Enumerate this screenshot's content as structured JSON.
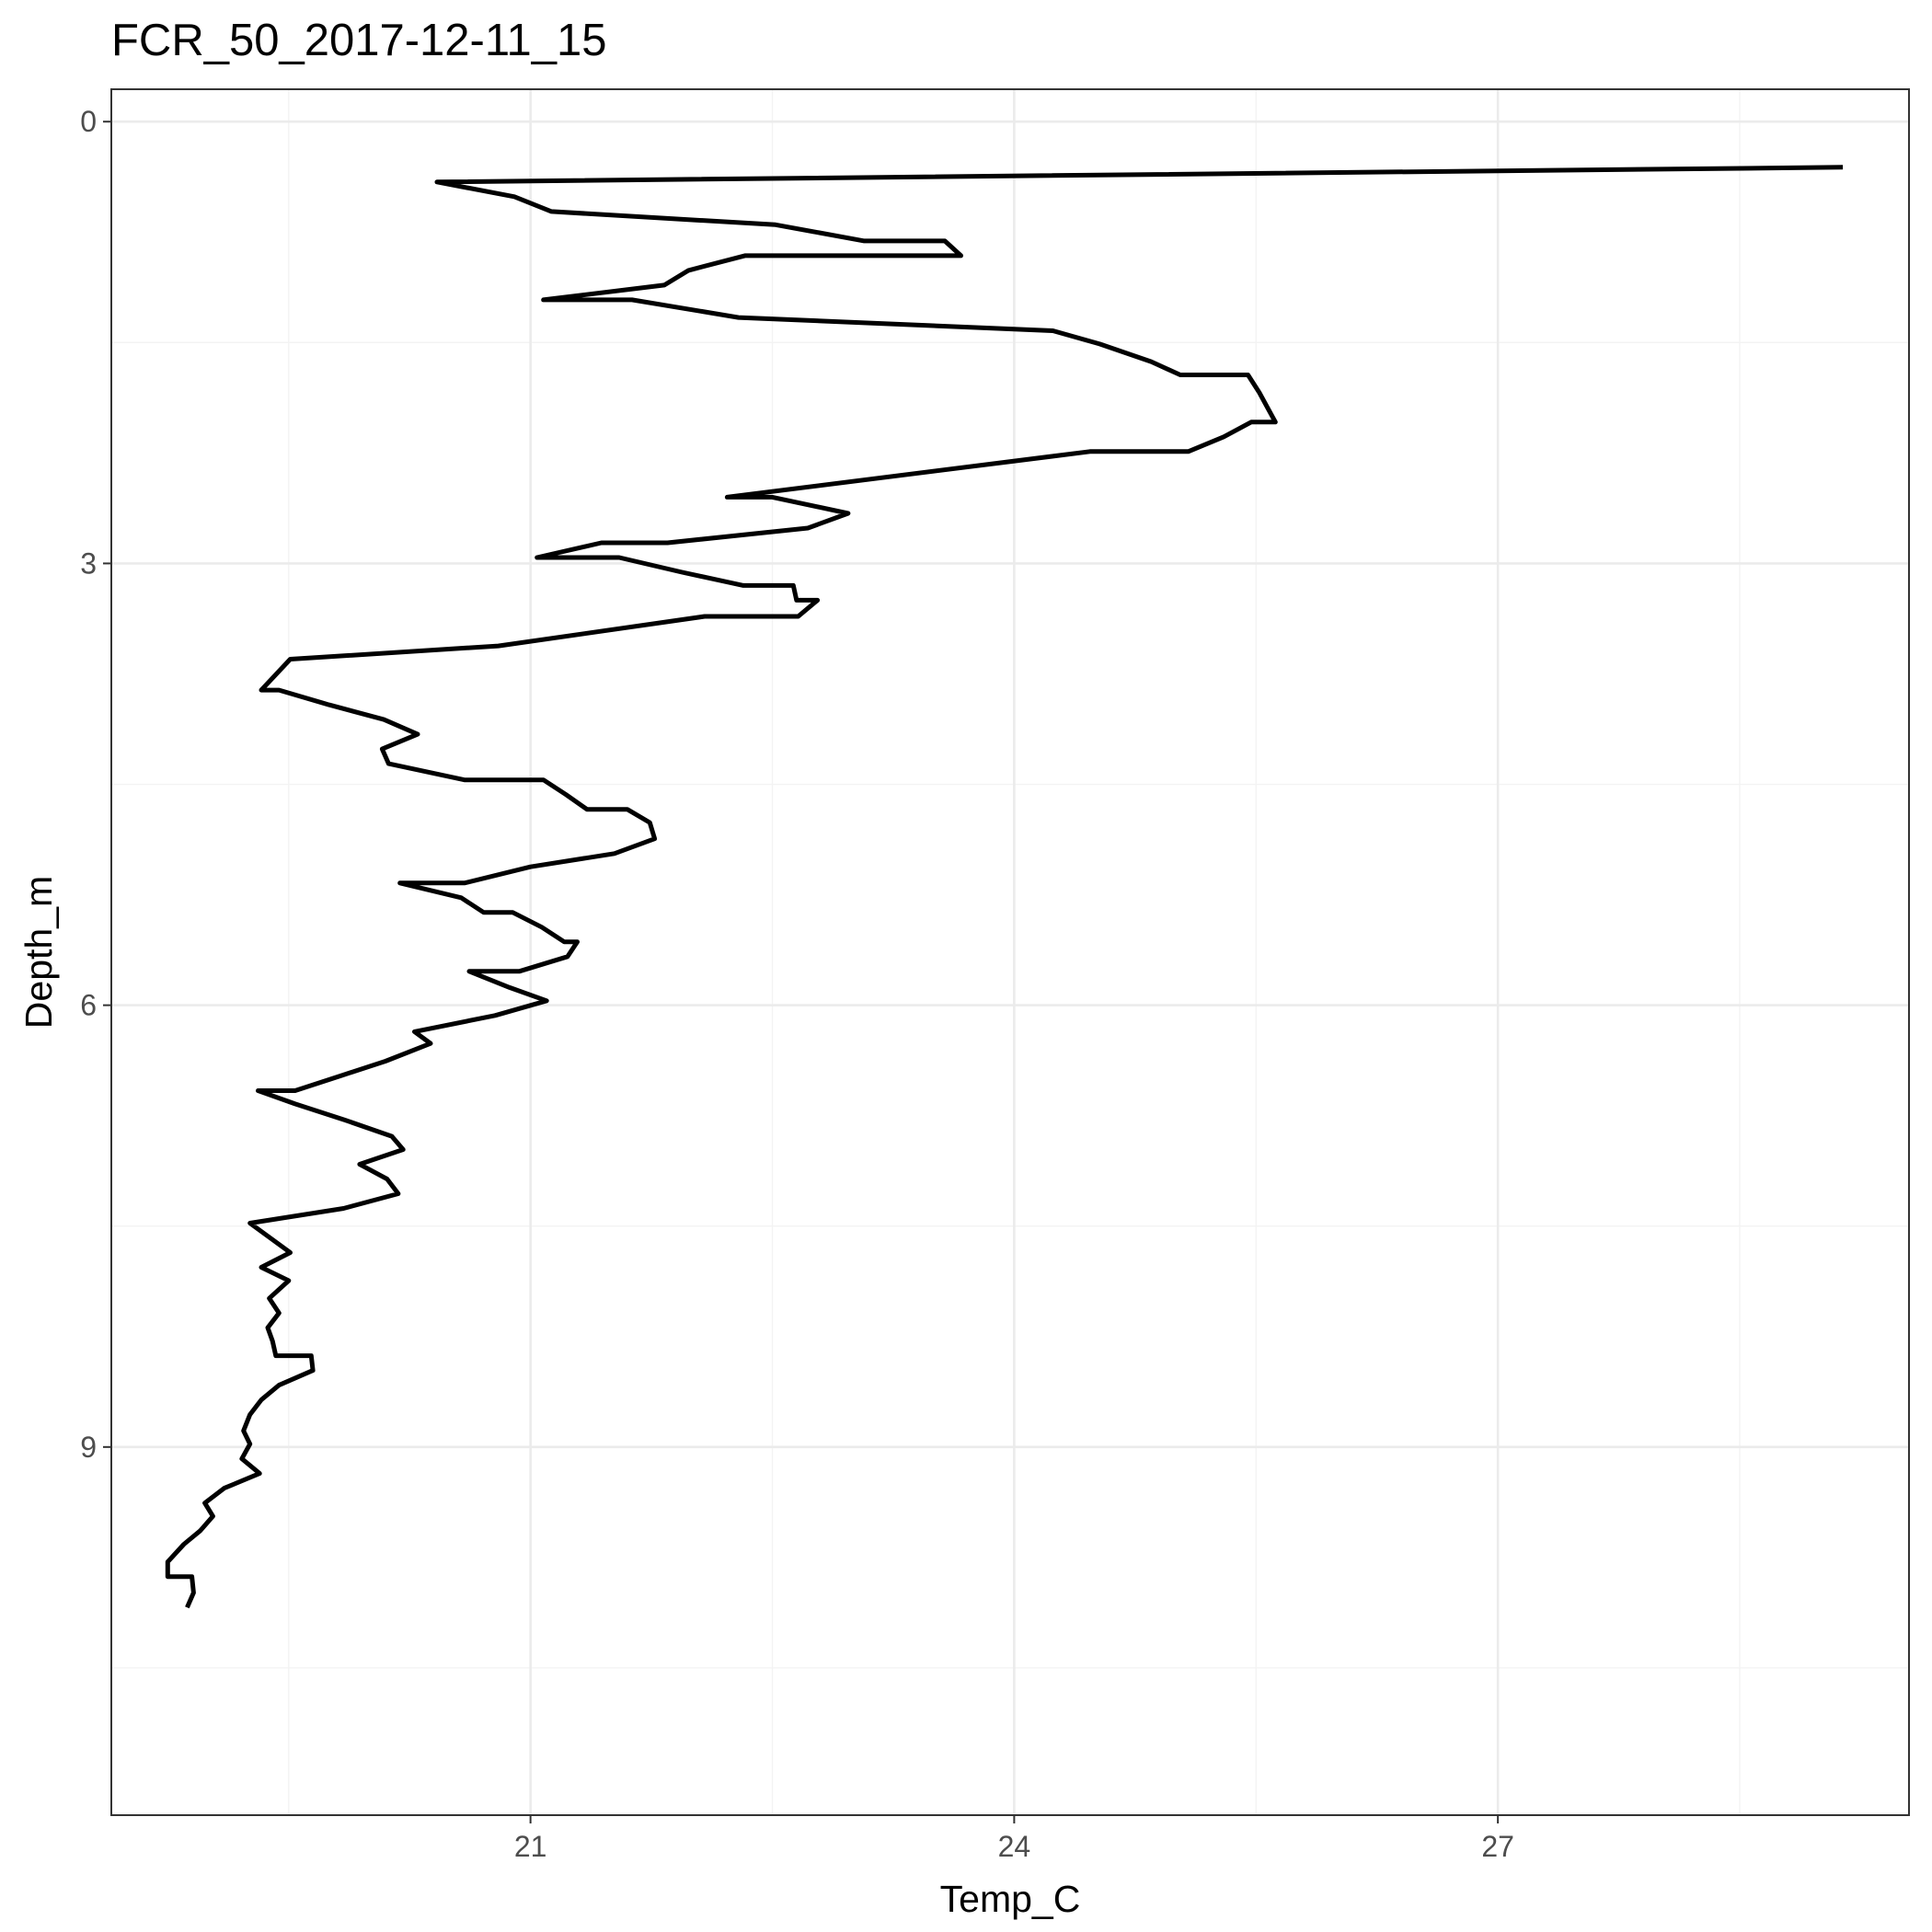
{
  "chart_data": {
    "type": "line",
    "title": "FCR_50_2017-12-11_15",
    "xlabel": "Temp_C",
    "ylabel": "Depth_m",
    "xlim": [
      18.4,
      29.55
    ],
    "ylim": [
      11.5,
      -0.22
    ],
    "y_reversed": true,
    "x_ticks": [
      21,
      24,
      27
    ],
    "y_ticks": [
      0,
      3,
      6,
      9
    ],
    "x_tick_labels": [
      "21",
      "24",
      "27"
    ],
    "y_tick_labels": [
      "0",
      "3",
      "6",
      "9"
    ],
    "grid": true,
    "legend": "none",
    "series": [
      {
        "color": "#000000",
        "x_label": "Temp_C",
        "y_label": "Depth_m",
        "points": [
          [
            29.14,
            0.31
          ],
          [
            20.42,
            0.41
          ],
          [
            20.9,
            0.51
          ],
          [
            21.13,
            0.61
          ],
          [
            22.52,
            0.7
          ],
          [
            23.07,
            0.81
          ],
          [
            23.57,
            0.81
          ],
          [
            23.67,
            0.91
          ],
          [
            22.33,
            0.91
          ],
          [
            21.98,
            1.01
          ],
          [
            21.83,
            1.11
          ],
          [
            21.08,
            1.21
          ],
          [
            21.63,
            1.21
          ],
          [
            22.29,
            1.33
          ],
          [
            24.24,
            1.42
          ],
          [
            24.53,
            1.51
          ],
          [
            24.85,
            1.63
          ],
          [
            25.03,
            1.72
          ],
          [
            25.45,
            1.72
          ],
          [
            25.52,
            1.84
          ],
          [
            25.57,
            1.94
          ],
          [
            25.62,
            2.04
          ],
          [
            25.47,
            2.04
          ],
          [
            25.3,
            2.14
          ],
          [
            25.08,
            2.24
          ],
          [
            24.47,
            2.24
          ],
          [
            22.22,
            2.55
          ],
          [
            22.5,
            2.55
          ],
          [
            22.97,
            2.66
          ],
          [
            22.72,
            2.76
          ],
          [
            21.85,
            2.86
          ],
          [
            21.44,
            2.86
          ],
          [
            21.04,
            2.96
          ],
          [
            21.55,
            2.96
          ],
          [
            21.94,
            3.06
          ],
          [
            22.32,
            3.15
          ],
          [
            22.63,
            3.15
          ],
          [
            22.65,
            3.25
          ],
          [
            22.78,
            3.25
          ],
          [
            22.66,
            3.36
          ],
          [
            22.08,
            3.36
          ],
          [
            20.8,
            3.56
          ],
          [
            19.51,
            3.65
          ],
          [
            19.33,
            3.86
          ],
          [
            19.44,
            3.86
          ],
          [
            19.75,
            3.96
          ],
          [
            20.09,
            4.06
          ],
          [
            20.3,
            4.16
          ],
          [
            20.08,
            4.26
          ],
          [
            20.12,
            4.36
          ],
          [
            20.59,
            4.47
          ],
          [
            21.08,
            4.47
          ],
          [
            21.22,
            4.57
          ],
          [
            21.35,
            4.67
          ],
          [
            21.6,
            4.67
          ],
          [
            21.74,
            4.76
          ],
          [
            21.77,
            4.87
          ],
          [
            21.52,
            4.97
          ],
          [
            21.0,
            5.06
          ],
          [
            20.59,
            5.17
          ],
          [
            20.19,
            5.17
          ],
          [
            20.57,
            5.27
          ],
          [
            20.71,
            5.37
          ],
          [
            20.89,
            5.37
          ],
          [
            21.07,
            5.47
          ],
          [
            21.21,
            5.57
          ],
          [
            21.29,
            5.57
          ],
          [
            21.23,
            5.67
          ],
          [
            20.93,
            5.77
          ],
          [
            20.62,
            5.77
          ],
          [
            20.87,
            5.88
          ],
          [
            21.1,
            5.97
          ],
          [
            20.78,
            6.07
          ],
          [
            20.28,
            6.18
          ],
          [
            20.38,
            6.26
          ],
          [
            20.1,
            6.38
          ],
          [
            19.82,
            6.48
          ],
          [
            19.54,
            6.58
          ],
          [
            19.31,
            6.58
          ],
          [
            19.54,
            6.67
          ],
          [
            19.85,
            6.78
          ],
          [
            20.14,
            6.89
          ],
          [
            20.21,
            6.98
          ],
          [
            19.94,
            7.08
          ],
          [
            20.11,
            7.18
          ],
          [
            20.18,
            7.28
          ],
          [
            19.84,
            7.38
          ],
          [
            19.26,
            7.48
          ],
          [
            19.51,
            7.68
          ],
          [
            19.33,
            7.78
          ],
          [
            19.5,
            7.87
          ],
          [
            19.38,
            7.99
          ],
          [
            19.44,
            8.09
          ],
          [
            19.37,
            8.19
          ],
          [
            19.4,
            8.28
          ],
          [
            19.42,
            8.38
          ],
          [
            19.64,
            8.38
          ],
          [
            19.65,
            8.48
          ],
          [
            19.44,
            8.58
          ],
          [
            19.33,
            8.68
          ],
          [
            19.26,
            8.78
          ],
          [
            19.22,
            8.89
          ],
          [
            19.26,
            8.98
          ],
          [
            19.21,
            9.08
          ],
          [
            19.32,
            9.18
          ],
          [
            19.1,
            9.28
          ],
          [
            18.98,
            9.38
          ],
          [
            19.03,
            9.47
          ],
          [
            18.95,
            9.57
          ],
          [
            18.85,
            9.66
          ],
          [
            18.75,
            9.78
          ],
          [
            18.75,
            9.88
          ],
          [
            18.9,
            9.88
          ],
          [
            18.91,
            9.99
          ],
          [
            18.87,
            10.09
          ]
        ]
      }
    ]
  }
}
